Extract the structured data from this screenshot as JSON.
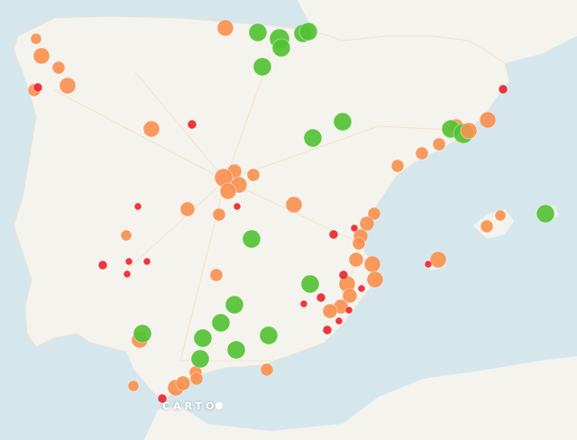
{
  "map": {
    "attribution": "CARTO",
    "colors": {
      "sea": "#d5e7ec",
      "land": "#f5f3ee",
      "orange_marker": "#f79150",
      "green_marker": "#52c234",
      "red_marker": "#e8282f"
    }
  }
}
